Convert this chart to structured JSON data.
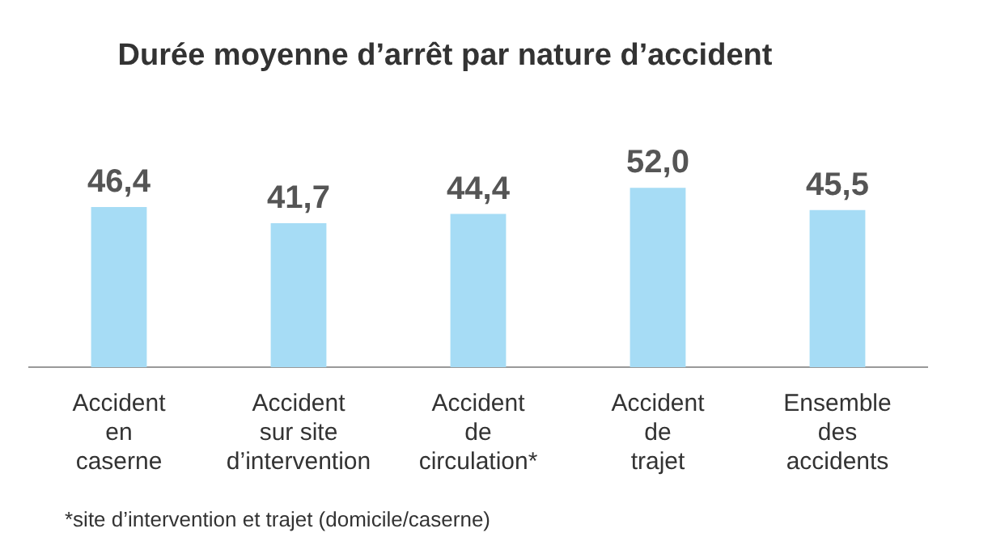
{
  "chart_data": {
    "type": "bar",
    "title": "Durée moyenne d’arrêt par nature d’accident",
    "categories": [
      "Accident\nen\ncaserne",
      "Accident\nsur site\nd’intervention",
      "Accident\nde\ncirculation*",
      "Accident\nde\ntrajet",
      "Ensemble\ndes\naccidents"
    ],
    "values": [
      46.4,
      41.7,
      44.4,
      52.0,
      45.5
    ],
    "value_labels": [
      "46,4",
      "41,7",
      "44,4",
      "52,0",
      "45,5"
    ],
    "color": "#a6dcf5",
    "annotations": [
      "*site d’intervention et trajet (domicile/caserne)"
    ]
  }
}
